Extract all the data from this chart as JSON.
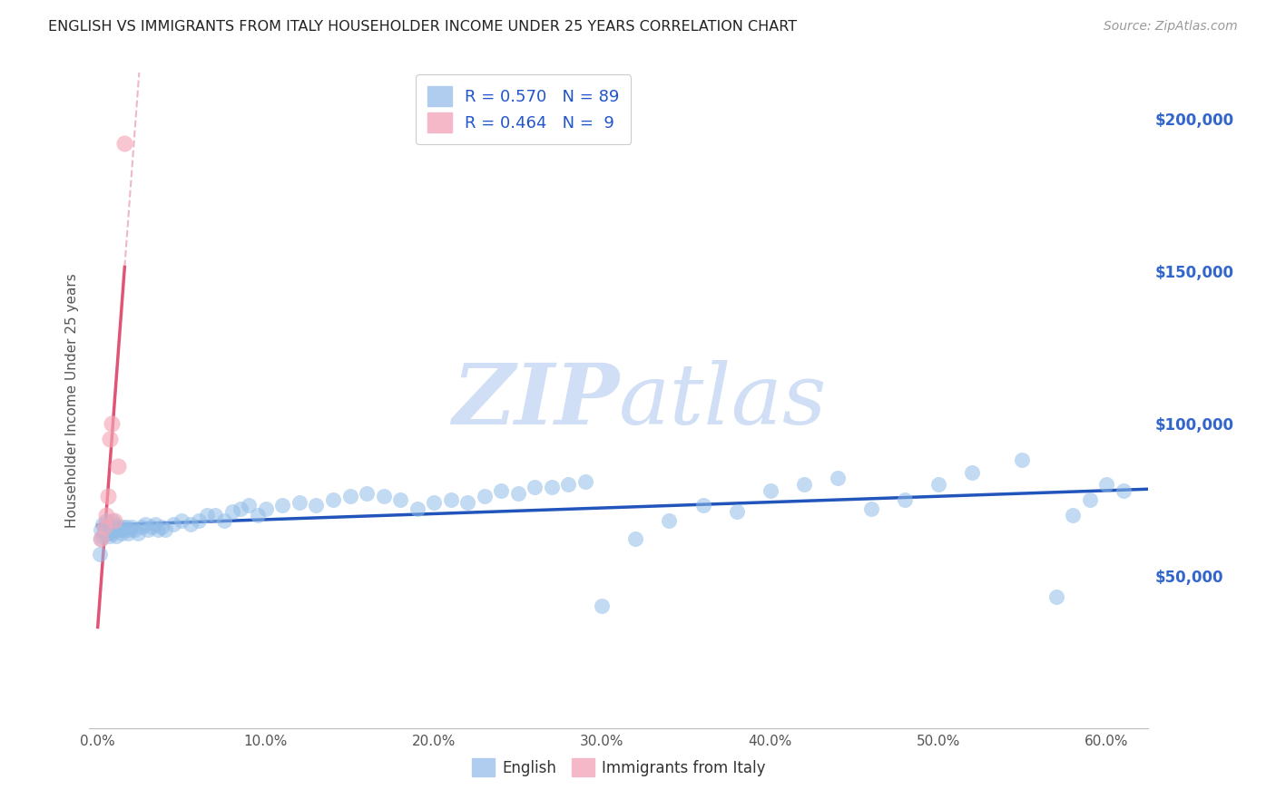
{
  "title": "ENGLISH VS IMMIGRANTS FROM ITALY HOUSEHOLDER INCOME UNDER 25 YEARS CORRELATION CHART",
  "source": "Source: ZipAtlas.com",
  "ylabel": "Householder Income Under 25 years",
  "ytick_labels": [
    "$50,000",
    "$100,000",
    "$150,000",
    "$200,000"
  ],
  "ytick_vals": [
    50000,
    100000,
    150000,
    200000
  ],
  "xlabel_ticks": [
    "0.0%",
    "10.0%",
    "20.0%",
    "30.0%",
    "40.0%",
    "50.0%",
    "60.0%"
  ],
  "xlabel_vals": [
    0.0,
    0.1,
    0.2,
    0.3,
    0.4,
    0.5,
    0.6
  ],
  "ylim": [
    0,
    215000
  ],
  "xlim": [
    -0.005,
    0.625
  ],
  "blue_color": "#90bce8",
  "pink_color": "#f5a8b8",
  "blue_line_color": "#2255bb",
  "pink_line_color": "#e05575",
  "pink_dash_color": "#e8a0b5",
  "watermark_color": "#d0dff5",
  "blue_R": 0.57,
  "blue_N": 89,
  "pink_R": 0.464,
  "pink_N": 9,
  "legend_bottom": [
    "English",
    "Immigrants from Italy"
  ],
  "grid_color": "#cccccc",
  "background": "#ffffff",
  "eng_x": [
    0.001,
    0.002,
    0.002,
    0.003,
    0.003,
    0.004,
    0.004,
    0.005,
    0.005,
    0.006,
    0.006,
    0.007,
    0.007,
    0.008,
    0.008,
    0.009,
    0.009,
    0.01,
    0.01,
    0.011,
    0.011,
    0.012,
    0.013,
    0.014,
    0.015,
    0.016,
    0.017,
    0.018,
    0.019,
    0.02,
    0.022,
    0.024,
    0.026,
    0.028,
    0.03,
    0.032,
    0.034,
    0.036,
    0.038,
    0.04,
    0.045,
    0.05,
    0.055,
    0.06,
    0.065,
    0.07,
    0.075,
    0.08,
    0.085,
    0.09,
    0.095,
    0.1,
    0.11,
    0.12,
    0.13,
    0.14,
    0.15,
    0.16,
    0.17,
    0.18,
    0.19,
    0.2,
    0.21,
    0.22,
    0.23,
    0.24,
    0.25,
    0.26,
    0.27,
    0.28,
    0.29,
    0.3,
    0.32,
    0.34,
    0.36,
    0.38,
    0.4,
    0.42,
    0.44,
    0.46,
    0.48,
    0.5,
    0.52,
    0.55,
    0.57,
    0.58,
    0.59,
    0.6,
    0.61
  ],
  "eng_y": [
    57000,
    62000,
    65000,
    63000,
    67000,
    64000,
    66000,
    65000,
    68000,
    64000,
    67000,
    65000,
    63000,
    66000,
    64000,
    65000,
    68000,
    65000,
    67000,
    65000,
    63000,
    66000,
    65000,
    64000,
    66000,
    65000,
    66000,
    64000,
    65000,
    66000,
    65000,
    64000,
    66000,
    67000,
    65000,
    66000,
    67000,
    65000,
    66000,
    65000,
    67000,
    68000,
    67000,
    68000,
    70000,
    70000,
    68000,
    71000,
    72000,
    73000,
    70000,
    72000,
    73000,
    74000,
    73000,
    75000,
    76000,
    77000,
    76000,
    75000,
    72000,
    74000,
    75000,
    74000,
    76000,
    78000,
    77000,
    79000,
    79000,
    80000,
    81000,
    40000,
    62000,
    68000,
    73000,
    71000,
    78000,
    80000,
    82000,
    72000,
    75000,
    80000,
    84000,
    88000,
    43000,
    70000,
    75000,
    80000,
    78000
  ],
  "ita_x": [
    0.002,
    0.004,
    0.005,
    0.006,
    0.007,
    0.008,
    0.01,
    0.012,
    0.016
  ],
  "ita_y": [
    62000,
    66000,
    70000,
    76000,
    95000,
    100000,
    68000,
    86000,
    192000
  ]
}
